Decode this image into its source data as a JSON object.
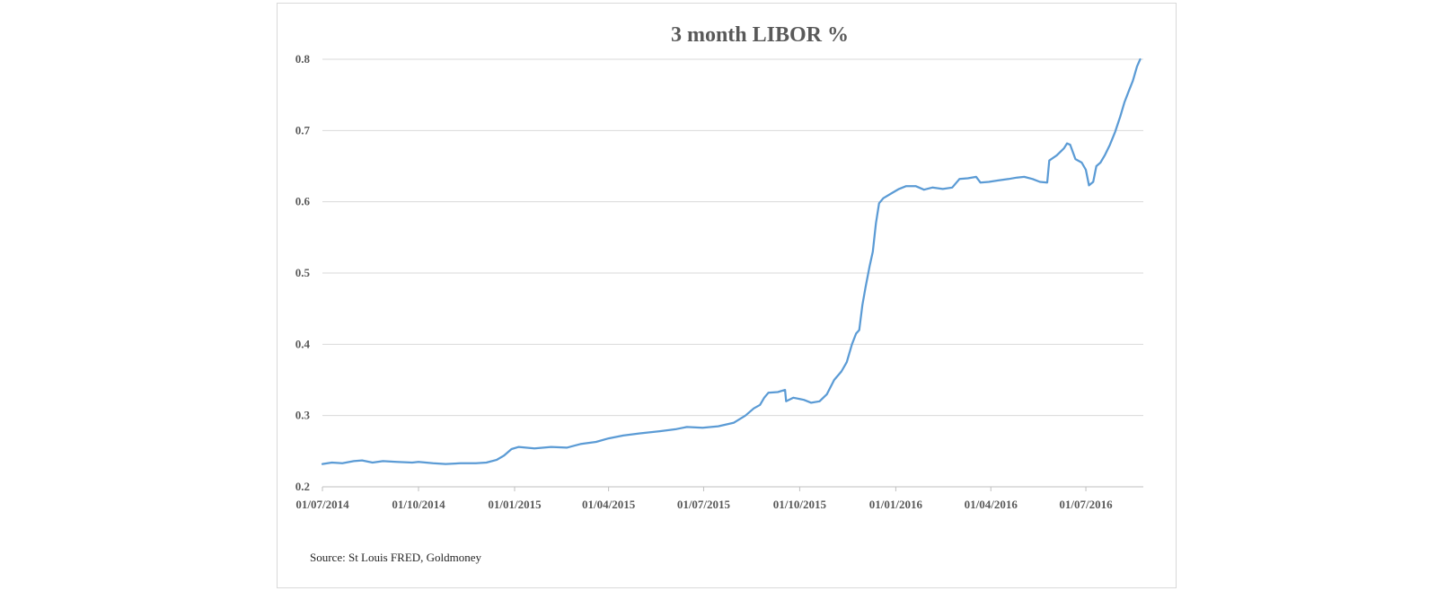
{
  "chart_data": {
    "type": "line",
    "title": "3 month LIBOR %",
    "xlabel": "",
    "ylabel": "",
    "ylim": [
      0.2,
      0.8
    ],
    "y_ticks": [
      "0.2",
      "0.3",
      "0.4",
      "0.5",
      "0.6",
      "0.7",
      "0.8"
    ],
    "x_ticks": [
      "01/07/2014",
      "01/10/2014",
      "01/01/2015",
      "01/04/2015",
      "01/07/2015",
      "01/10/2015",
      "01/01/2016",
      "01/04/2016",
      "01/07/2016"
    ],
    "xlim": [
      "2014-07-01",
      "2016-08-25"
    ],
    "grid": true,
    "legend": "none",
    "series": [
      {
        "color": "#5b9bd5",
        "points": [
          [
            "2014-07-01",
            0.232
          ],
          [
            "2014-07-10",
            0.234
          ],
          [
            "2014-07-20",
            0.233
          ],
          [
            "2014-07-31",
            0.236
          ],
          [
            "2014-08-08",
            0.237
          ],
          [
            "2014-08-18",
            0.234
          ],
          [
            "2014-08-28",
            0.236
          ],
          [
            "2014-09-10",
            0.235
          ],
          [
            "2014-09-25",
            0.234
          ],
          [
            "2014-10-01",
            0.235
          ],
          [
            "2014-10-15",
            0.233
          ],
          [
            "2014-10-27",
            0.232
          ],
          [
            "2014-11-10",
            0.233
          ],
          [
            "2014-11-25",
            0.233
          ],
          [
            "2014-12-05",
            0.234
          ],
          [
            "2014-12-15",
            0.238
          ],
          [
            "2014-12-22",
            0.244
          ],
          [
            "2014-12-29",
            0.253
          ],
          [
            "2015-01-05",
            0.256
          ],
          [
            "2015-01-20",
            0.254
          ],
          [
            "2015-02-05",
            0.256
          ],
          [
            "2015-02-20",
            0.255
          ],
          [
            "2015-03-05",
            0.26
          ],
          [
            "2015-03-20",
            0.263
          ],
          [
            "2015-04-01",
            0.268
          ],
          [
            "2015-04-15",
            0.272
          ],
          [
            "2015-05-01",
            0.275
          ],
          [
            "2015-05-20",
            0.278
          ],
          [
            "2015-06-05",
            0.281
          ],
          [
            "2015-06-15",
            0.284
          ],
          [
            "2015-06-30",
            0.283
          ],
          [
            "2015-07-15",
            0.285
          ],
          [
            "2015-07-30",
            0.29
          ],
          [
            "2015-08-10",
            0.3
          ],
          [
            "2015-08-18",
            0.31
          ],
          [
            "2015-08-24",
            0.315
          ],
          [
            "2015-08-28",
            0.325
          ],
          [
            "2015-09-01",
            0.332
          ],
          [
            "2015-09-10",
            0.333
          ],
          [
            "2015-09-17",
            0.336
          ],
          [
            "2015-09-18",
            0.32
          ],
          [
            "2015-09-25",
            0.325
          ],
          [
            "2015-10-05",
            0.322
          ],
          [
            "2015-10-12",
            0.318
          ],
          [
            "2015-10-20",
            0.32
          ],
          [
            "2015-10-27",
            0.33
          ],
          [
            "2015-11-03",
            0.35
          ],
          [
            "2015-11-10",
            0.362
          ],
          [
            "2015-11-15",
            0.375
          ],
          [
            "2015-11-20",
            0.4
          ],
          [
            "2015-11-24",
            0.415
          ],
          [
            "2015-11-27",
            0.42
          ],
          [
            "2015-11-30",
            0.455
          ],
          [
            "2015-12-03",
            0.48
          ],
          [
            "2015-12-07",
            0.51
          ],
          [
            "2015-12-10",
            0.53
          ],
          [
            "2015-12-13",
            0.57
          ],
          [
            "2015-12-16",
            0.598
          ],
          [
            "2015-12-20",
            0.605
          ],
          [
            "2015-12-28",
            0.612
          ],
          [
            "2016-01-04",
            0.618
          ],
          [
            "2016-01-11",
            0.622
          ],
          [
            "2016-01-20",
            0.622
          ],
          [
            "2016-01-28",
            0.617
          ],
          [
            "2016-02-05",
            0.62
          ],
          [
            "2016-02-15",
            0.618
          ],
          [
            "2016-02-24",
            0.62
          ],
          [
            "2016-03-02",
            0.632
          ],
          [
            "2016-03-10",
            0.633
          ],
          [
            "2016-03-18",
            0.635
          ],
          [
            "2016-03-22",
            0.627
          ],
          [
            "2016-03-30",
            0.628
          ],
          [
            "2016-04-08",
            0.63
          ],
          [
            "2016-04-18",
            0.632
          ],
          [
            "2016-04-26",
            0.634
          ],
          [
            "2016-05-03",
            0.635
          ],
          [
            "2016-05-11",
            0.632
          ],
          [
            "2016-05-18",
            0.628
          ],
          [
            "2016-05-25",
            0.627
          ],
          [
            "2016-05-27",
            0.658
          ],
          [
            "2016-06-03",
            0.665
          ],
          [
            "2016-06-10",
            0.675
          ],
          [
            "2016-06-13",
            0.682
          ],
          [
            "2016-06-16",
            0.68
          ],
          [
            "2016-06-21",
            0.66
          ],
          [
            "2016-06-27",
            0.655
          ],
          [
            "2016-07-01",
            0.645
          ],
          [
            "2016-07-04",
            0.623
          ],
          [
            "2016-07-08",
            0.628
          ],
          [
            "2016-07-11",
            0.65
          ],
          [
            "2016-07-15",
            0.655
          ],
          [
            "2016-07-19",
            0.665
          ],
          [
            "2016-07-24",
            0.68
          ],
          [
            "2016-07-29",
            0.698
          ],
          [
            "2016-08-03",
            0.72
          ],
          [
            "2016-08-07",
            0.74
          ],
          [
            "2016-08-11",
            0.755
          ],
          [
            "2016-08-15",
            0.77
          ],
          [
            "2016-08-19",
            0.79
          ],
          [
            "2016-08-22",
            0.8
          ]
        ]
      }
    ]
  },
  "source_note": "Source: St Louis FRED, Goldmoney"
}
